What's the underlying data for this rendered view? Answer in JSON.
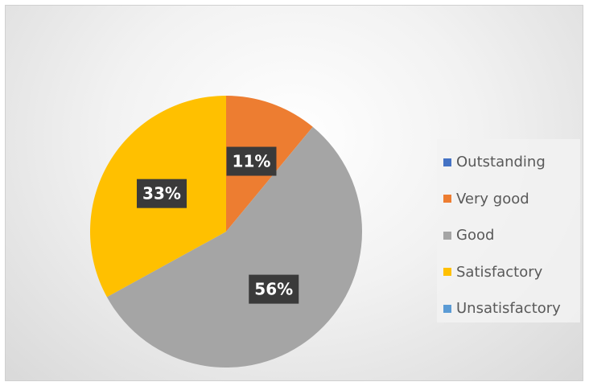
{
  "chart_data": {
    "type": "pie",
    "title": "",
    "categories": [
      "Outstanding",
      "Very good",
      "Good",
      "Satisfactory",
      "Unsatisfactory"
    ],
    "values": [
      0,
      11,
      56,
      33,
      0
    ],
    "labels": [
      "",
      "11%",
      "56%",
      "33%",
      ""
    ],
    "colors": [
      "#4472C4",
      "#ED7D31",
      "#A5A5A5",
      "#FFC000",
      "#5B9BD5"
    ],
    "legend_position": "right",
    "start_angle_deg": 0,
    "direction": "clockwise"
  }
}
